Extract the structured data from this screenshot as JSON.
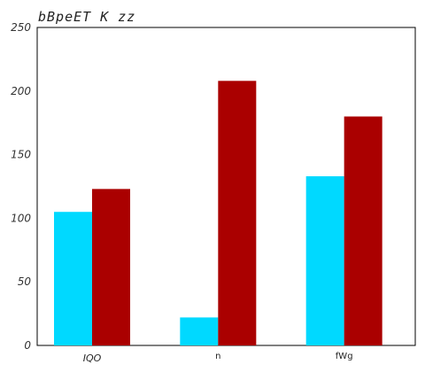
{
  "chart_data": {
    "type": "bar",
    "title": "bBpeET K  zz",
    "categories": [
      "IQO",
      "n",
      "fWg"
    ],
    "series": [
      {
        "values": [
          105,
          22,
          133
        ],
        "color": "#00d9ff"
      },
      {
        "values": [
          123,
          208,
          180
        ],
        "color": "#aa0000"
      }
    ],
    "xlabel": "",
    "ylabel": "",
    "ylim": [
      0,
      250
    ],
    "yticks": [
      0,
      50,
      100,
      150,
      200,
      250
    ],
    "grid": false,
    "legend": "none"
  }
}
